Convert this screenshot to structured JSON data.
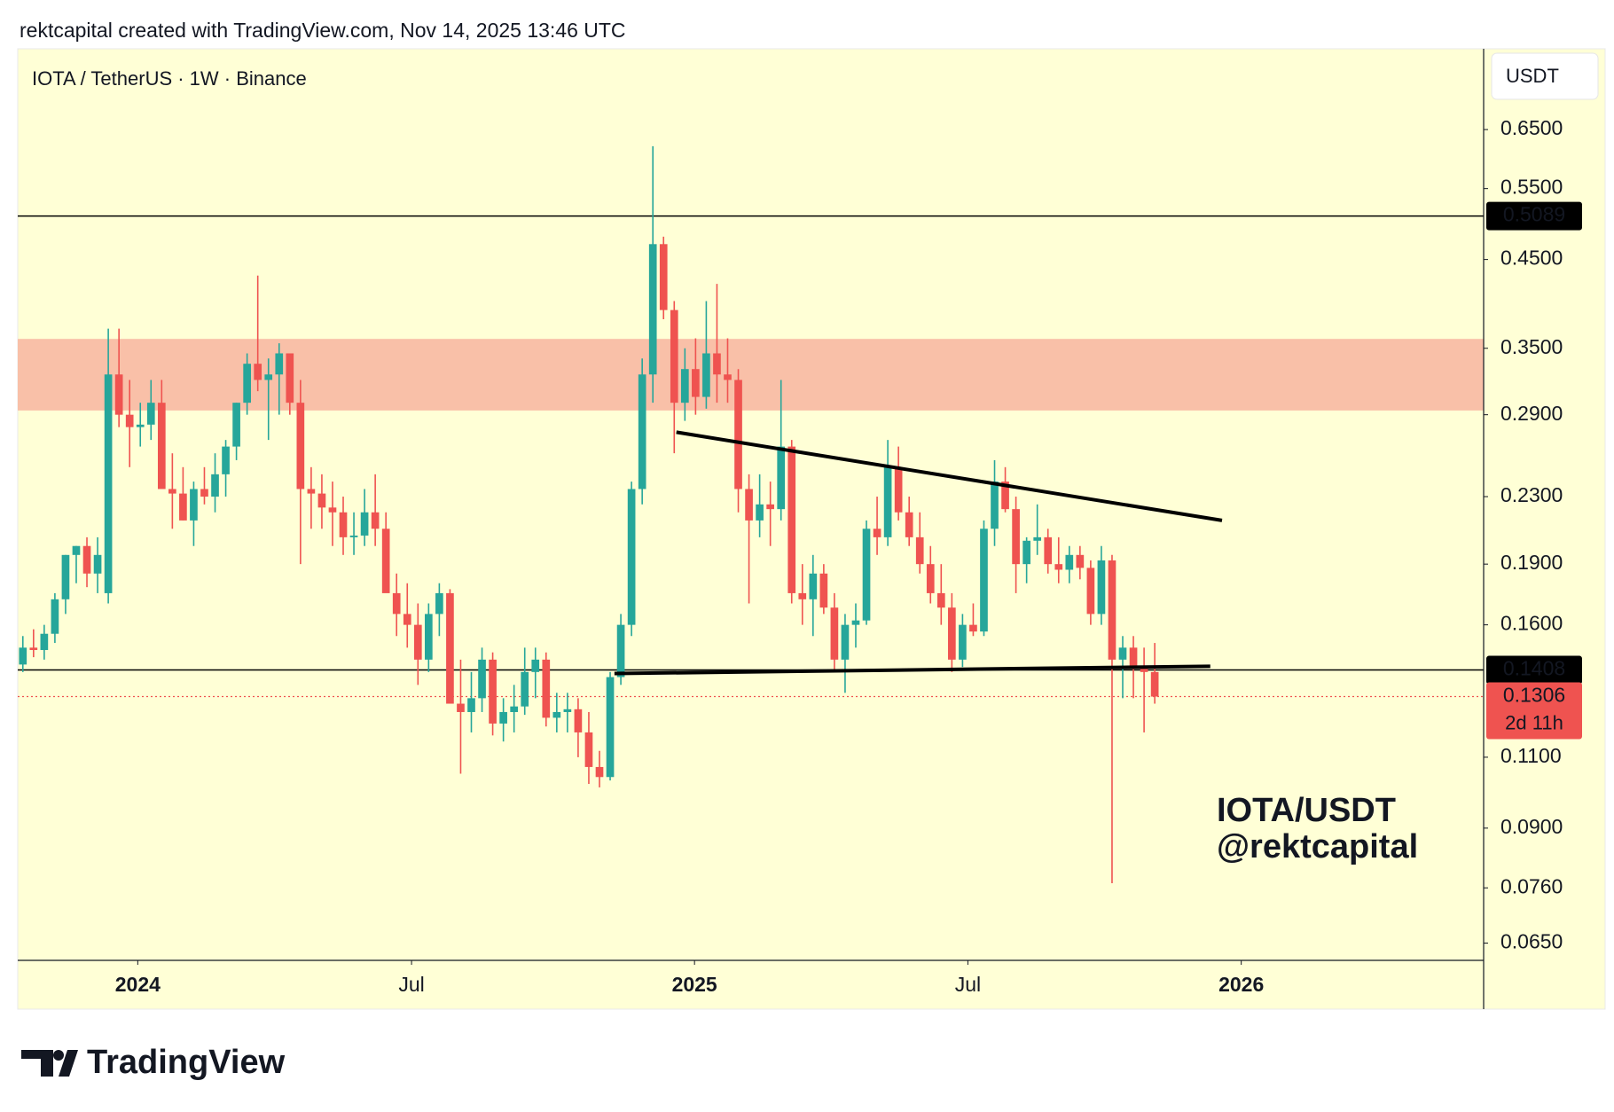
{
  "header": {
    "text": "rektcapital created with TradingView.com, Nov 14, 2025 13:46 UTC"
  },
  "footer": {
    "brand": "TradingView"
  },
  "chart_data": {
    "type": "candlestick",
    "title": "IOTA / TetherUS · 1W · Binance",
    "currency": "USDT",
    "watermark": [
      "IOTA/USDT",
      "@rektcapital"
    ],
    "log_scale": true,
    "up_color": "#26a69a",
    "down_color": "#ef5350",
    "x": [
      0,
      1,
      2,
      3,
      4,
      5,
      6,
      7,
      8,
      9,
      10,
      11,
      12,
      13,
      14,
      15,
      16,
      17,
      18,
      19,
      20,
      21,
      22,
      23,
      24,
      25,
      26,
      27,
      28,
      29,
      30,
      31,
      32,
      33,
      34,
      35,
      36,
      37,
      38,
      39,
      40,
      41,
      42,
      43,
      44,
      45,
      46,
      47,
      48,
      49,
      50,
      51,
      52,
      53,
      54,
      55,
      56,
      57,
      58,
      59,
      60,
      61,
      62,
      63,
      64,
      65,
      66,
      67,
      68,
      69,
      70,
      71,
      72,
      73,
      74,
      75,
      76,
      77,
      78,
      79,
      80,
      81,
      82,
      83,
      84,
      85,
      86,
      87,
      88,
      89,
      90,
      91,
      92,
      93,
      94,
      95,
      96,
      97,
      98,
      99,
      100,
      101,
      102,
      103,
      104,
      105,
      106
    ],
    "open": [
      0.143,
      0.15,
      0.149,
      0.156,
      0.172,
      0.195,
      0.2,
      0.185,
      0.175,
      0.325,
      0.29,
      0.28,
      0.282,
      0.3,
      0.235,
      0.232,
      0.215,
      0.235,
      0.23,
      0.245,
      0.265,
      0.3,
      0.335,
      0.32,
      0.325,
      0.345,
      0.3,
      0.235,
      0.232,
      0.223,
      0.22,
      0.205,
      0.206,
      0.22,
      0.21,
      0.175,
      0.165,
      0.16,
      0.145,
      0.165,
      0.175,
      0.128,
      0.125,
      0.13,
      0.145,
      0.121,
      0.125,
      0.127,
      0.14,
      0.145,
      0.123,
      0.125,
      0.126,
      0.118,
      0.107,
      0.104,
      0.138,
      0.16,
      0.235,
      0.325,
      0.47,
      0.39,
      0.3,
      0.33,
      0.305,
      0.345,
      0.325,
      0.32,
      0.235,
      0.215,
      0.225,
      0.222,
      0.265,
      0.175,
      0.172,
      0.185,
      0.168,
      0.145,
      0.16,
      0.162,
      0.21,
      0.205,
      0.25,
      0.22,
      0.205,
      0.19,
      0.175,
      0.168,
      0.145,
      0.16,
      0.157,
      0.21,
      0.24,
      0.222,
      0.19,
      0.203,
      0.205,
      0.19,
      0.187,
      0.195,
      0.188,
      0.165,
      0.192,
      0.145,
      0.15,
      0.142,
      0.14
    ],
    "high": [
      0.155,
      0.158,
      0.16,
      0.175,
      0.195,
      0.2,
      0.205,
      0.205,
      0.37,
      0.37,
      0.32,
      0.3,
      0.32,
      0.32,
      0.26,
      0.25,
      0.24,
      0.25,
      0.26,
      0.27,
      0.3,
      0.345,
      0.43,
      0.34,
      0.355,
      0.345,
      0.32,
      0.25,
      0.245,
      0.24,
      0.23,
      0.22,
      0.235,
      0.245,
      0.22,
      0.185,
      0.18,
      0.17,
      0.17,
      0.18,
      0.177,
      0.145,
      0.14,
      0.15,
      0.148,
      0.13,
      0.135,
      0.15,
      0.15,
      0.148,
      0.132,
      0.132,
      0.13,
      0.125,
      0.112,
      0.14,
      0.165,
      0.24,
      0.34,
      0.62,
      0.48,
      0.4,
      0.35,
      0.36,
      0.4,
      0.42,
      0.36,
      0.33,
      0.245,
      0.245,
      0.24,
      0.32,
      0.27,
      0.19,
      0.195,
      0.19,
      0.175,
      0.165,
      0.17,
      0.215,
      0.23,
      0.27,
      0.265,
      0.23,
      0.22,
      0.2,
      0.19,
      0.175,
      0.165,
      0.17,
      0.215,
      0.255,
      0.25,
      0.23,
      0.205,
      0.225,
      0.21,
      0.205,
      0.2,
      0.2,
      0.192,
      0.2,
      0.195,
      0.155,
      0.155,
      0.15,
      0.152
    ],
    "low": [
      0.14,
      0.146,
      0.145,
      0.152,
      0.165,
      0.18,
      0.178,
      0.175,
      0.17,
      0.28,
      0.25,
      0.265,
      0.27,
      0.24,
      0.21,
      0.215,
      0.2,
      0.225,
      0.22,
      0.23,
      0.255,
      0.29,
      0.31,
      0.27,
      0.29,
      0.29,
      0.19,
      0.21,
      0.21,
      0.2,
      0.195,
      0.195,
      0.2,
      0.2,
      0.18,
      0.155,
      0.15,
      0.135,
      0.14,
      0.155,
      0.13,
      0.105,
      0.118,
      0.125,
      0.117,
      0.115,
      0.118,
      0.124,
      0.13,
      0.12,
      0.118,
      0.118,
      0.11,
      0.102,
      0.101,
      0.103,
      0.135,
      0.155,
      0.225,
      0.3,
      0.38,
      0.26,
      0.285,
      0.29,
      0.295,
      0.3,
      0.3,
      0.22,
      0.17,
      0.205,
      0.2,
      0.215,
      0.17,
      0.16,
      0.155,
      0.165,
      0.14,
      0.132,
      0.15,
      0.16,
      0.195,
      0.2,
      0.215,
      0.2,
      0.185,
      0.17,
      0.16,
      0.14,
      0.142,
      0.155,
      0.155,
      0.2,
      0.22,
      0.175,
      0.18,
      0.195,
      0.185,
      0.18,
      0.18,
      0.182,
      0.16,
      0.16,
      0.077,
      0.13,
      0.13,
      0.118,
      0.128
    ],
    "close": [
      0.15,
      0.149,
      0.156,
      0.172,
      0.195,
      0.2,
      0.185,
      0.195,
      0.325,
      0.29,
      0.28,
      0.282,
      0.3,
      0.235,
      0.232,
      0.215,
      0.235,
      0.23,
      0.245,
      0.265,
      0.3,
      0.335,
      0.32,
      0.325,
      0.345,
      0.3,
      0.235,
      0.232,
      0.223,
      0.22,
      0.205,
      0.206,
      0.22,
      0.21,
      0.175,
      0.165,
      0.16,
      0.145,
      0.165,
      0.175,
      0.128,
      0.125,
      0.13,
      0.145,
      0.121,
      0.125,
      0.127,
      0.14,
      0.145,
      0.123,
      0.125,
      0.126,
      0.118,
      0.107,
      0.104,
      0.138,
      0.16,
      0.235,
      0.325,
      0.47,
      0.39,
      0.3,
      0.33,
      0.305,
      0.345,
      0.325,
      0.32,
      0.235,
      0.215,
      0.225,
      0.222,
      0.265,
      0.175,
      0.172,
      0.185,
      0.168,
      0.145,
      0.16,
      0.162,
      0.21,
      0.205,
      0.25,
      0.22,
      0.205,
      0.19,
      0.175,
      0.168,
      0.145,
      0.16,
      0.157,
      0.21,
      0.24,
      0.222,
      0.19,
      0.203,
      0.205,
      0.19,
      0.187,
      0.195,
      0.188,
      0.165,
      0.192,
      0.145,
      0.15,
      0.142,
      0.14,
      0.1306
    ],
    "xlim": [
      -0.48,
      136.8
    ],
    "xticks": [
      {
        "value": 10.76,
        "label": "2024",
        "bold": true
      },
      {
        "value": 36.4,
        "label": "Jul"
      },
      {
        "value": 62.9,
        "label": "2025",
        "bold": true
      },
      {
        "value": 88.5,
        "label": "Jul"
      },
      {
        "value": 114.1,
        "label": "2026",
        "bold": true
      }
    ],
    "ylim": [
      0.0619,
      0.817
    ],
    "yticks": [
      {
        "value": 0.65,
        "label": "0.6500"
      },
      {
        "value": 0.55,
        "label": "0.5500"
      },
      {
        "value": 0.45,
        "label": "0.4500"
      },
      {
        "value": 0.35,
        "label": "0.3500"
      },
      {
        "value": 0.29,
        "label": "0.2900"
      },
      {
        "value": 0.23,
        "label": "0.2300"
      },
      {
        "value": 0.19,
        "label": "0.1900"
      },
      {
        "value": 0.16,
        "label": "0.1600"
      },
      {
        "value": 0.11,
        "label": "0.1100"
      },
      {
        "value": 0.09,
        "label": "0.0900"
      },
      {
        "value": 0.076,
        "label": "0.0760"
      },
      {
        "value": 0.065,
        "label": "0.0650"
      }
    ],
    "zone": [
      0.2935,
      0.3594
    ],
    "zone_color": "#f9c0a8",
    "levels": [
      0.5089,
      0.1408
    ],
    "trendlines": [
      {
        "x": [
          61.2,
          112.3
        ],
        "y": [
          0.276,
          0.215
        ]
      },
      {
        "x": [
          55.4,
          111.2
        ],
        "y": [
          0.1394,
          0.1423
        ]
      }
    ],
    "last_price": 0.1306,
    "countdown": "2d 11h"
  }
}
